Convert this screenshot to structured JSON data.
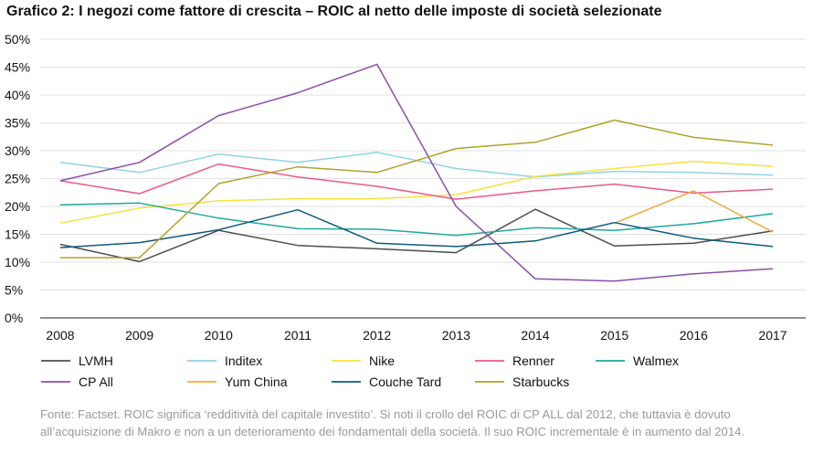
{
  "title": "Grafico 2: I negozi come fattore di crescita – ROIC al netto delle imposte di società selezionate",
  "footnote": "Fonte: Factset. ROIC significa ‘redditività del capitale investito’. Si noti il crollo del ROIC di CP ALL dal 2012, che tuttavia è dovuto all’acquisizione di Makro e non a un deterioramento dei fondamentali della società. Il suo ROIC incrementale è in aumento dal 2014.",
  "chart_data": {
    "type": "line",
    "x": [
      2008,
      2009,
      2010,
      2011,
      2012,
      2013,
      2014,
      2015,
      2016,
      2017
    ],
    "xlabel": "",
    "ylabel": "",
    "ylim": [
      0,
      50
    ],
    "yticks": [
      "0%",
      "5%",
      "10%",
      "15%",
      "20%",
      "25%",
      "30%",
      "35%",
      "40%",
      "45%",
      "50%"
    ],
    "grid": true,
    "legend_position": "bottom",
    "series": [
      {
        "name": "LVMH",
        "color": "#4d4d4d",
        "values": [
          13.2,
          10.1,
          15.7,
          13.0,
          12.4,
          11.7,
          19.5,
          12.9,
          13.4,
          15.6
        ]
      },
      {
        "name": "Inditex",
        "color": "#8fd3e3",
        "values": [
          27.9,
          26.1,
          29.4,
          27.9,
          29.7,
          26.8,
          25.3,
          26.3,
          26.1,
          25.6
        ]
      },
      {
        "name": "Nike",
        "color": "#f6e33f",
        "values": [
          17.0,
          19.7,
          21.0,
          21.4,
          21.4,
          22.1,
          25.4,
          26.8,
          28.1,
          27.2
        ]
      },
      {
        "name": "Renner",
        "color": "#e85a8a",
        "values": [
          24.6,
          22.3,
          27.6,
          25.3,
          23.6,
          21.3,
          22.8,
          24.0,
          22.4,
          23.1
        ]
      },
      {
        "name": "Walmex",
        "color": "#1fa99e",
        "values": [
          20.3,
          20.6,
          17.9,
          16.0,
          15.9,
          14.8,
          16.2,
          15.7,
          16.9,
          18.7
        ]
      },
      {
        "name": "CP All",
        "color": "#8a4fa8",
        "values": [
          24.6,
          27.9,
          36.3,
          40.4,
          45.5,
          20.0,
          7.0,
          6.6,
          7.9,
          8.8
        ]
      },
      {
        "name": "Yum China",
        "color": "#f2a93b",
        "values": [
          null,
          null,
          null,
          null,
          null,
          null,
          null,
          17.0,
          22.8,
          15.4
        ]
      },
      {
        "name": "Couche Tard",
        "color": "#0d5a7f",
        "values": [
          12.6,
          13.5,
          15.8,
          19.4,
          13.4,
          12.8,
          13.8,
          17.1,
          14.3,
          12.8
        ]
      },
      {
        "name": "Starbucks",
        "color": "#b0a32a",
        "values": [
          10.8,
          10.8,
          24.1,
          27.1,
          26.1,
          30.4,
          31.5,
          35.5,
          32.4,
          31.0
        ]
      }
    ]
  }
}
